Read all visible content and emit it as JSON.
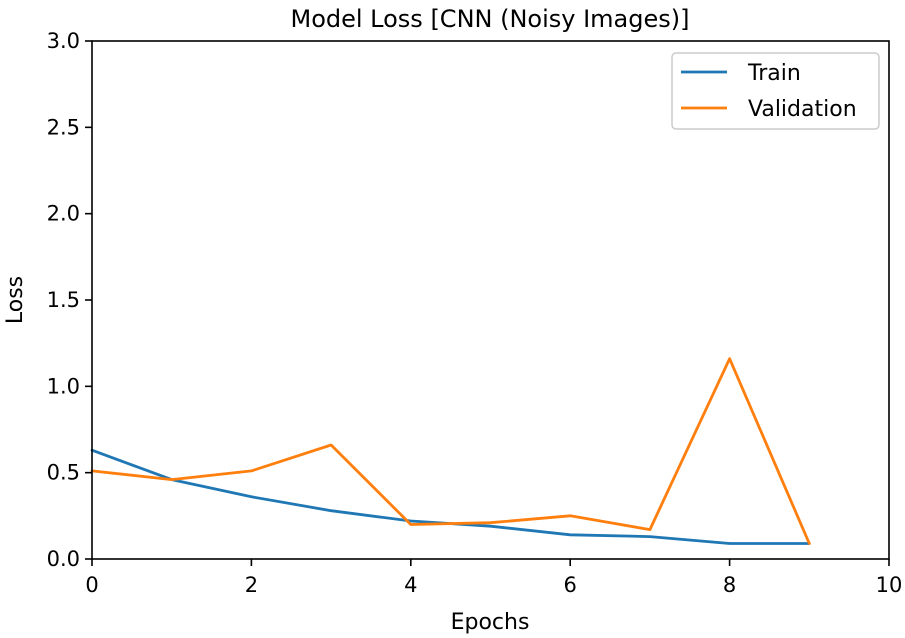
{
  "chart_data": {
    "type": "line",
    "title": "Model Loss [CNN (Noisy Images)]",
    "xlabel": "Epochs",
    "ylabel": "Loss",
    "xlim": [
      0,
      10
    ],
    "ylim": [
      0,
      3.0
    ],
    "xticks": [
      0,
      2,
      4,
      6,
      8,
      10
    ],
    "xtick_labels": [
      "0",
      "2",
      "4",
      "6",
      "8",
      "10"
    ],
    "yticks": [
      0,
      0.5,
      1.0,
      1.5,
      2.0,
      2.5,
      3.0
    ],
    "ytick_labels": [
      "0.0",
      "0.5",
      "1.0",
      "1.5",
      "2.0",
      "2.5",
      "3.0"
    ],
    "grid": false,
    "legend_position": "top-right",
    "x": [
      0,
      1,
      2,
      3,
      4,
      5,
      6,
      7,
      8,
      9
    ],
    "series": [
      {
        "name": "Train",
        "color": "#1f77b4",
        "values": [
          0.63,
          0.46,
          0.36,
          0.28,
          0.22,
          0.19,
          0.14,
          0.13,
          0.09,
          0.09
        ]
      },
      {
        "name": "Validation",
        "color": "#ff7f0e",
        "values": [
          0.51,
          0.46,
          0.51,
          0.66,
          0.2,
          0.21,
          0.25,
          0.17,
          1.16,
          0.09
        ]
      }
    ]
  }
}
